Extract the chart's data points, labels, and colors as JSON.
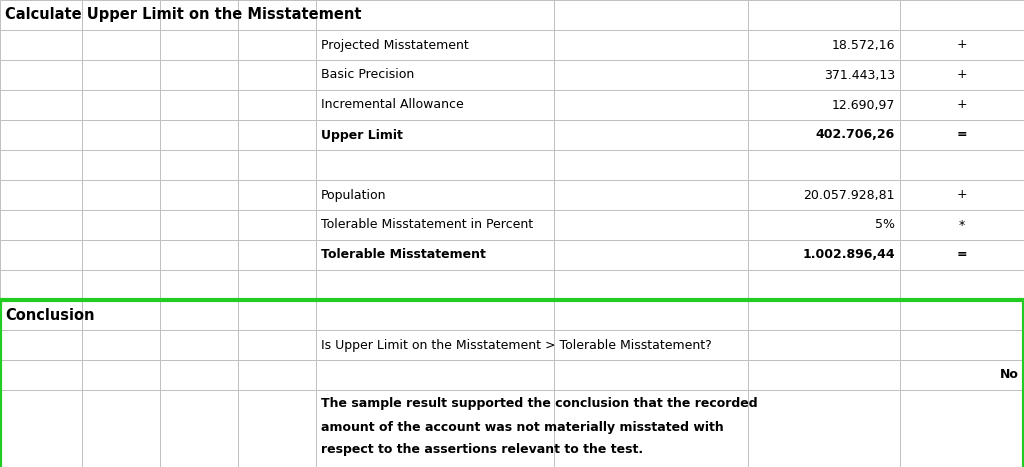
{
  "title": "Calculate Upper Limit on the Misstatement",
  "section1_rows": [
    {
      "label": "Projected Misstatement",
      "value": "18.572,16",
      "symbol": "+",
      "bold": false
    },
    {
      "label": "Basic Precision",
      "value": "371.443,13",
      "symbol": "+",
      "bold": false
    },
    {
      "label": "Incremental Allowance",
      "value": "12.690,97",
      "symbol": "+",
      "bold": false
    },
    {
      "label": "Upper Limit",
      "value": "402.706,26",
      "symbol": "=",
      "bold": true
    }
  ],
  "section2_rows": [
    {
      "label": "Population",
      "value": "20.057.928,81",
      "symbol": "+",
      "bold": false
    },
    {
      "label": "Tolerable Misstatement in Percent",
      "value": "5%",
      "symbol": "*",
      "bold": false
    },
    {
      "label": "Tolerable Misstatement",
      "value": "1.002.896,44",
      "symbol": "=",
      "bold": true
    }
  ],
  "conclusion_label": "Conclusion",
  "conclusion_question": "Is Upper Limit on the Misstatement > Tolerable Misstatement?",
  "conclusion_answer": "No",
  "conclusion_text": "The sample result supported the conclusion that the recorded\namount of the account was not materially misstated with\nrespect to the assertions relevant to the test.",
  "bg_color": "#ffffff",
  "grid_color": "#c0c0c0",
  "text_color": "#000000",
  "conclusion_border_color": "#22cc22",
  "body_font_size": 9.0,
  "title_font_size": 10.5
}
